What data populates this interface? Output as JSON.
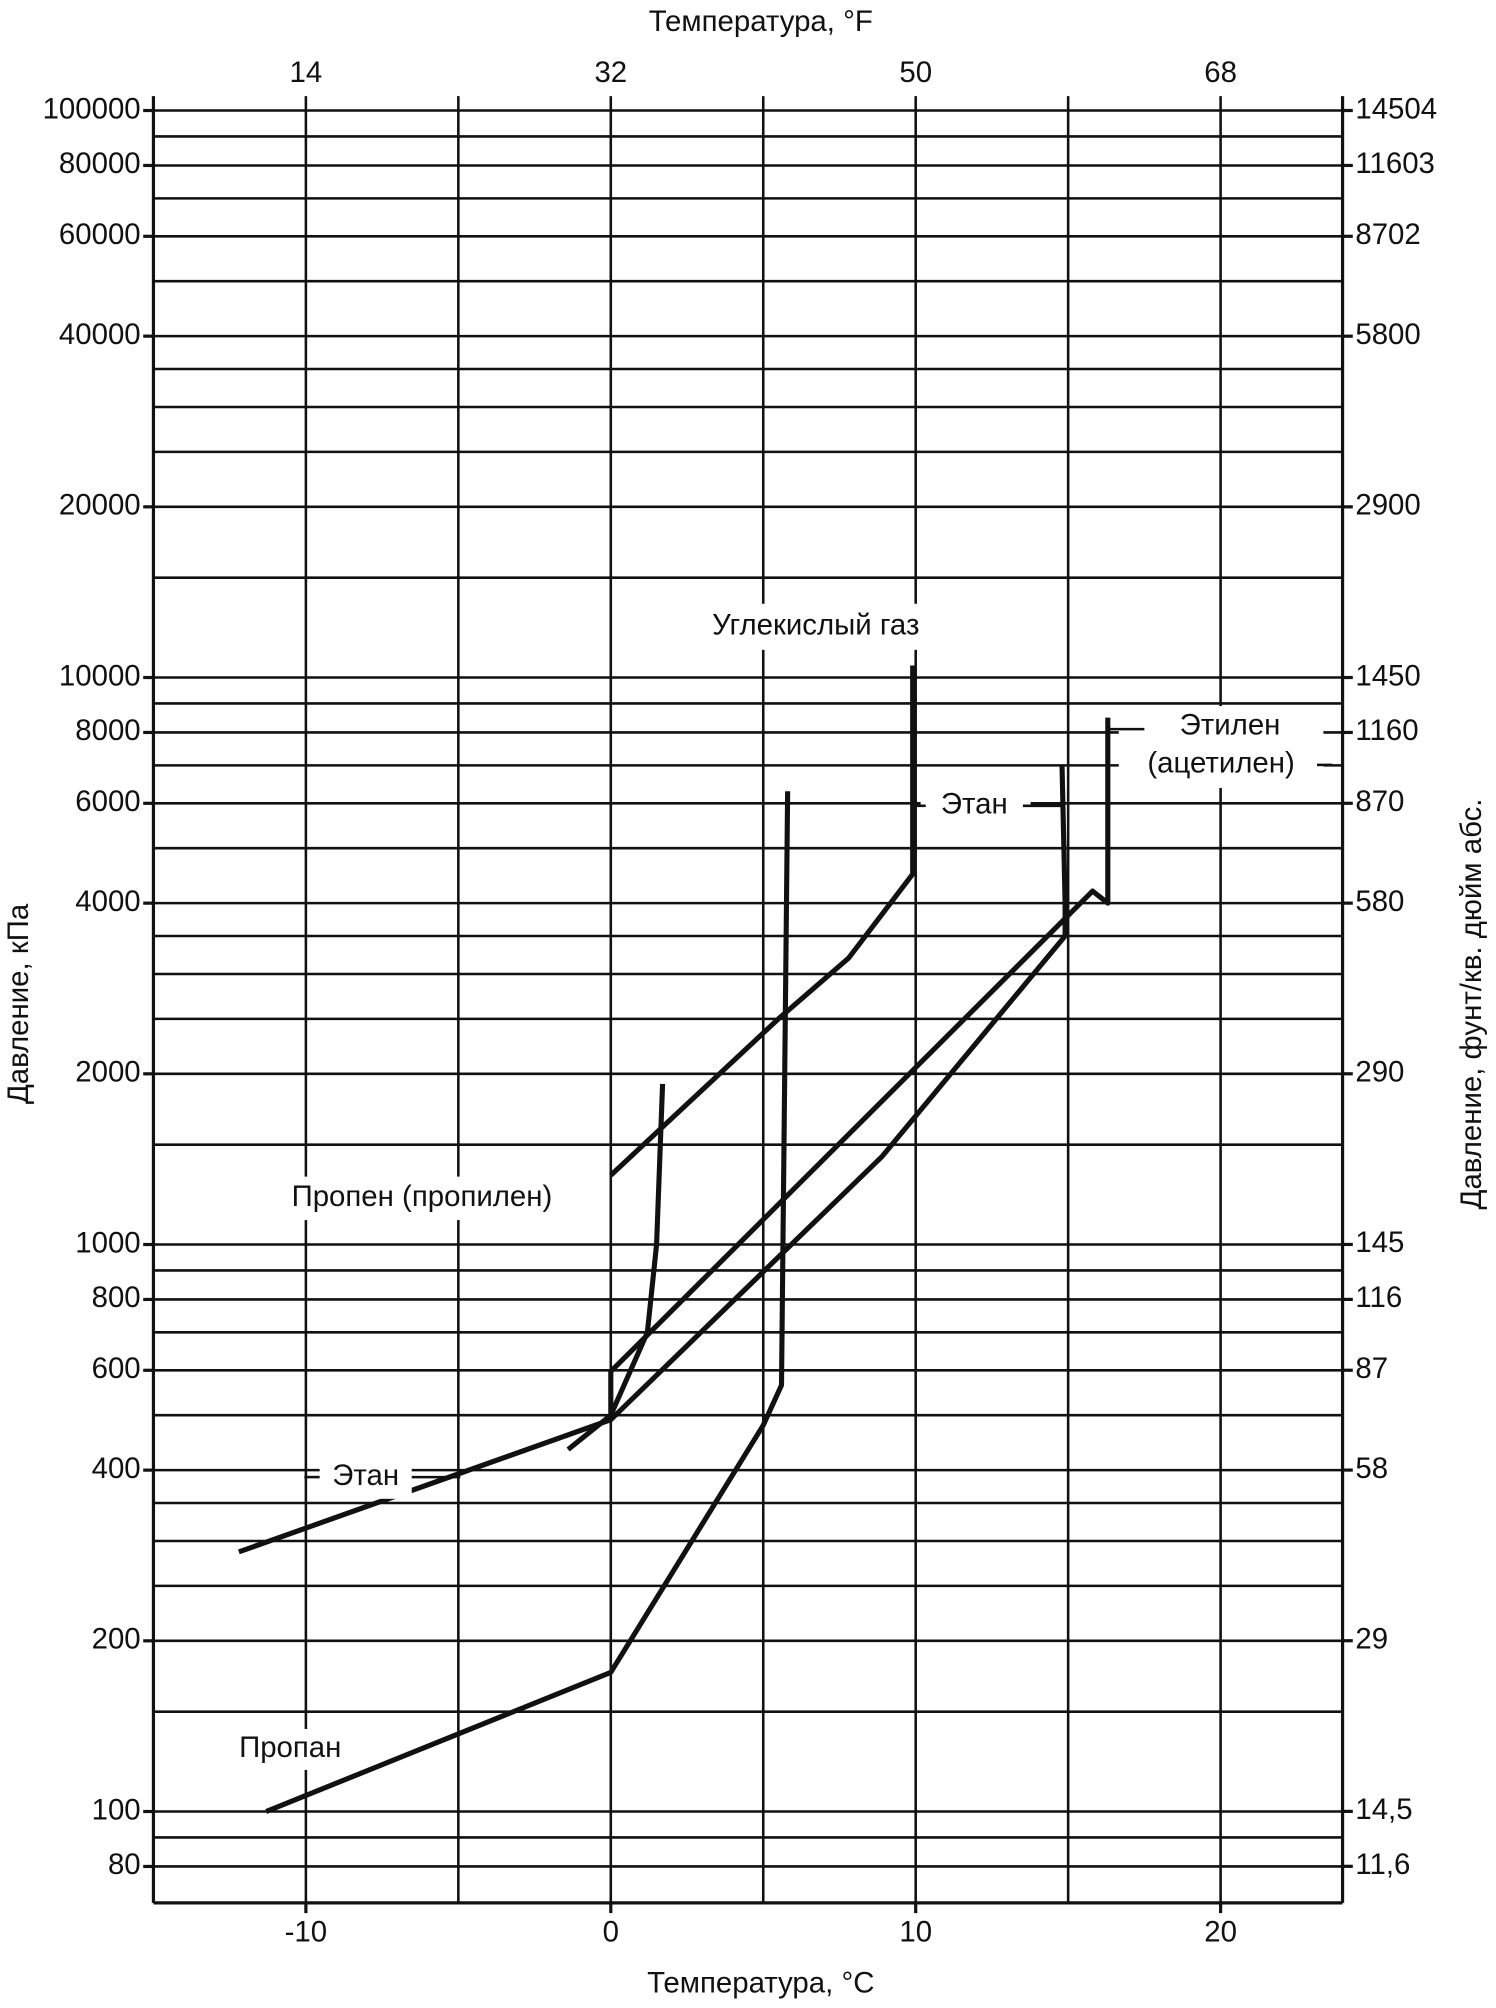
{
  "chart_data": {
    "type": "line",
    "xlabel": "Температура, °C",
    "x2label": "Температура, °F",
    "ylabel": "Давление, кПа",
    "y2label": "Давление, фунт/кв. дюйм абс.",
    "xlim": [
      -15,
      24
    ],
    "xticks": [
      -10,
      0,
      10,
      20
    ],
    "xgrid": [
      -10,
      -5,
      0,
      5,
      10,
      15,
      20
    ],
    "x2lim": [
      5,
      75.2
    ],
    "x2ticks": [
      14,
      32,
      50,
      68
    ],
    "ylim": [
      69,
      106000
    ],
    "log_y": true,
    "yticks": [
      80,
      100,
      200,
      400,
      600,
      800,
      1000,
      2000,
      4000,
      6000,
      8000,
      10000,
      20000,
      40000,
      60000,
      80000,
      100000
    ],
    "ygrid": [
      80,
      90,
      100,
      150,
      200,
      250,
      300,
      350,
      400,
      500,
      600,
      700,
      800,
      900,
      1000,
      1500,
      2000,
      2500,
      3000,
      3500,
      4000,
      5000,
      6000,
      7000,
      8000,
      9000,
      10000,
      15000,
      20000,
      25000,
      30000,
      35000,
      40000,
      50000,
      60000,
      70000,
      80000,
      90000,
      100000
    ],
    "y2lim": [
      10,
      15374
    ],
    "y2ticks": [
      {
        "value": 11.6,
        "label": "11,6"
      },
      {
        "value": 14.5,
        "label": "14,5"
      },
      29,
      58,
      87,
      116,
      145,
      290,
      580,
      870,
      1160,
      1450,
      2900,
      5800,
      8702,
      11603,
      14504
    ],
    "annotations": [
      "(ацетилен)"
    ],
    "series": [
      {
        "name": "Пропан",
        "color": "#111111",
        "x": [
          -11.3,
          0,
          5.0,
          5.6,
          5.8
        ],
        "y": [
          100,
          176,
          480,
          565,
          6300
        ]
      },
      {
        "name": "Этан",
        "color": "#111111",
        "x": [
          -12.2,
          0,
          8.9,
          14.9,
          14.9,
          14.8
        ],
        "y": [
          287,
          491,
          1430,
          3500,
          4000,
          7000
        ]
      },
      {
        "name": "Этилен",
        "color": "#111111",
        "x": [
          -1.4,
          0,
          0,
          15.8,
          16.3,
          16.3
        ],
        "y": [
          435,
          500,
          597,
          4200,
          4000,
          8500
        ]
      },
      {
        "name": "Пропен (пропилен)",
        "color": "#111111",
        "x": [
          0,
          1.2,
          1.5,
          1.7
        ],
        "y": [
          500,
          700,
          1000,
          1920
        ]
      },
      {
        "name": "Углекислый газ",
        "color": "#111111",
        "x": [
          0,
          5.5,
          7.8,
          9.9,
          9.9
        ],
        "y": [
          1325,
          2500,
          3200,
          4500,
          10500
        ]
      }
    ]
  }
}
